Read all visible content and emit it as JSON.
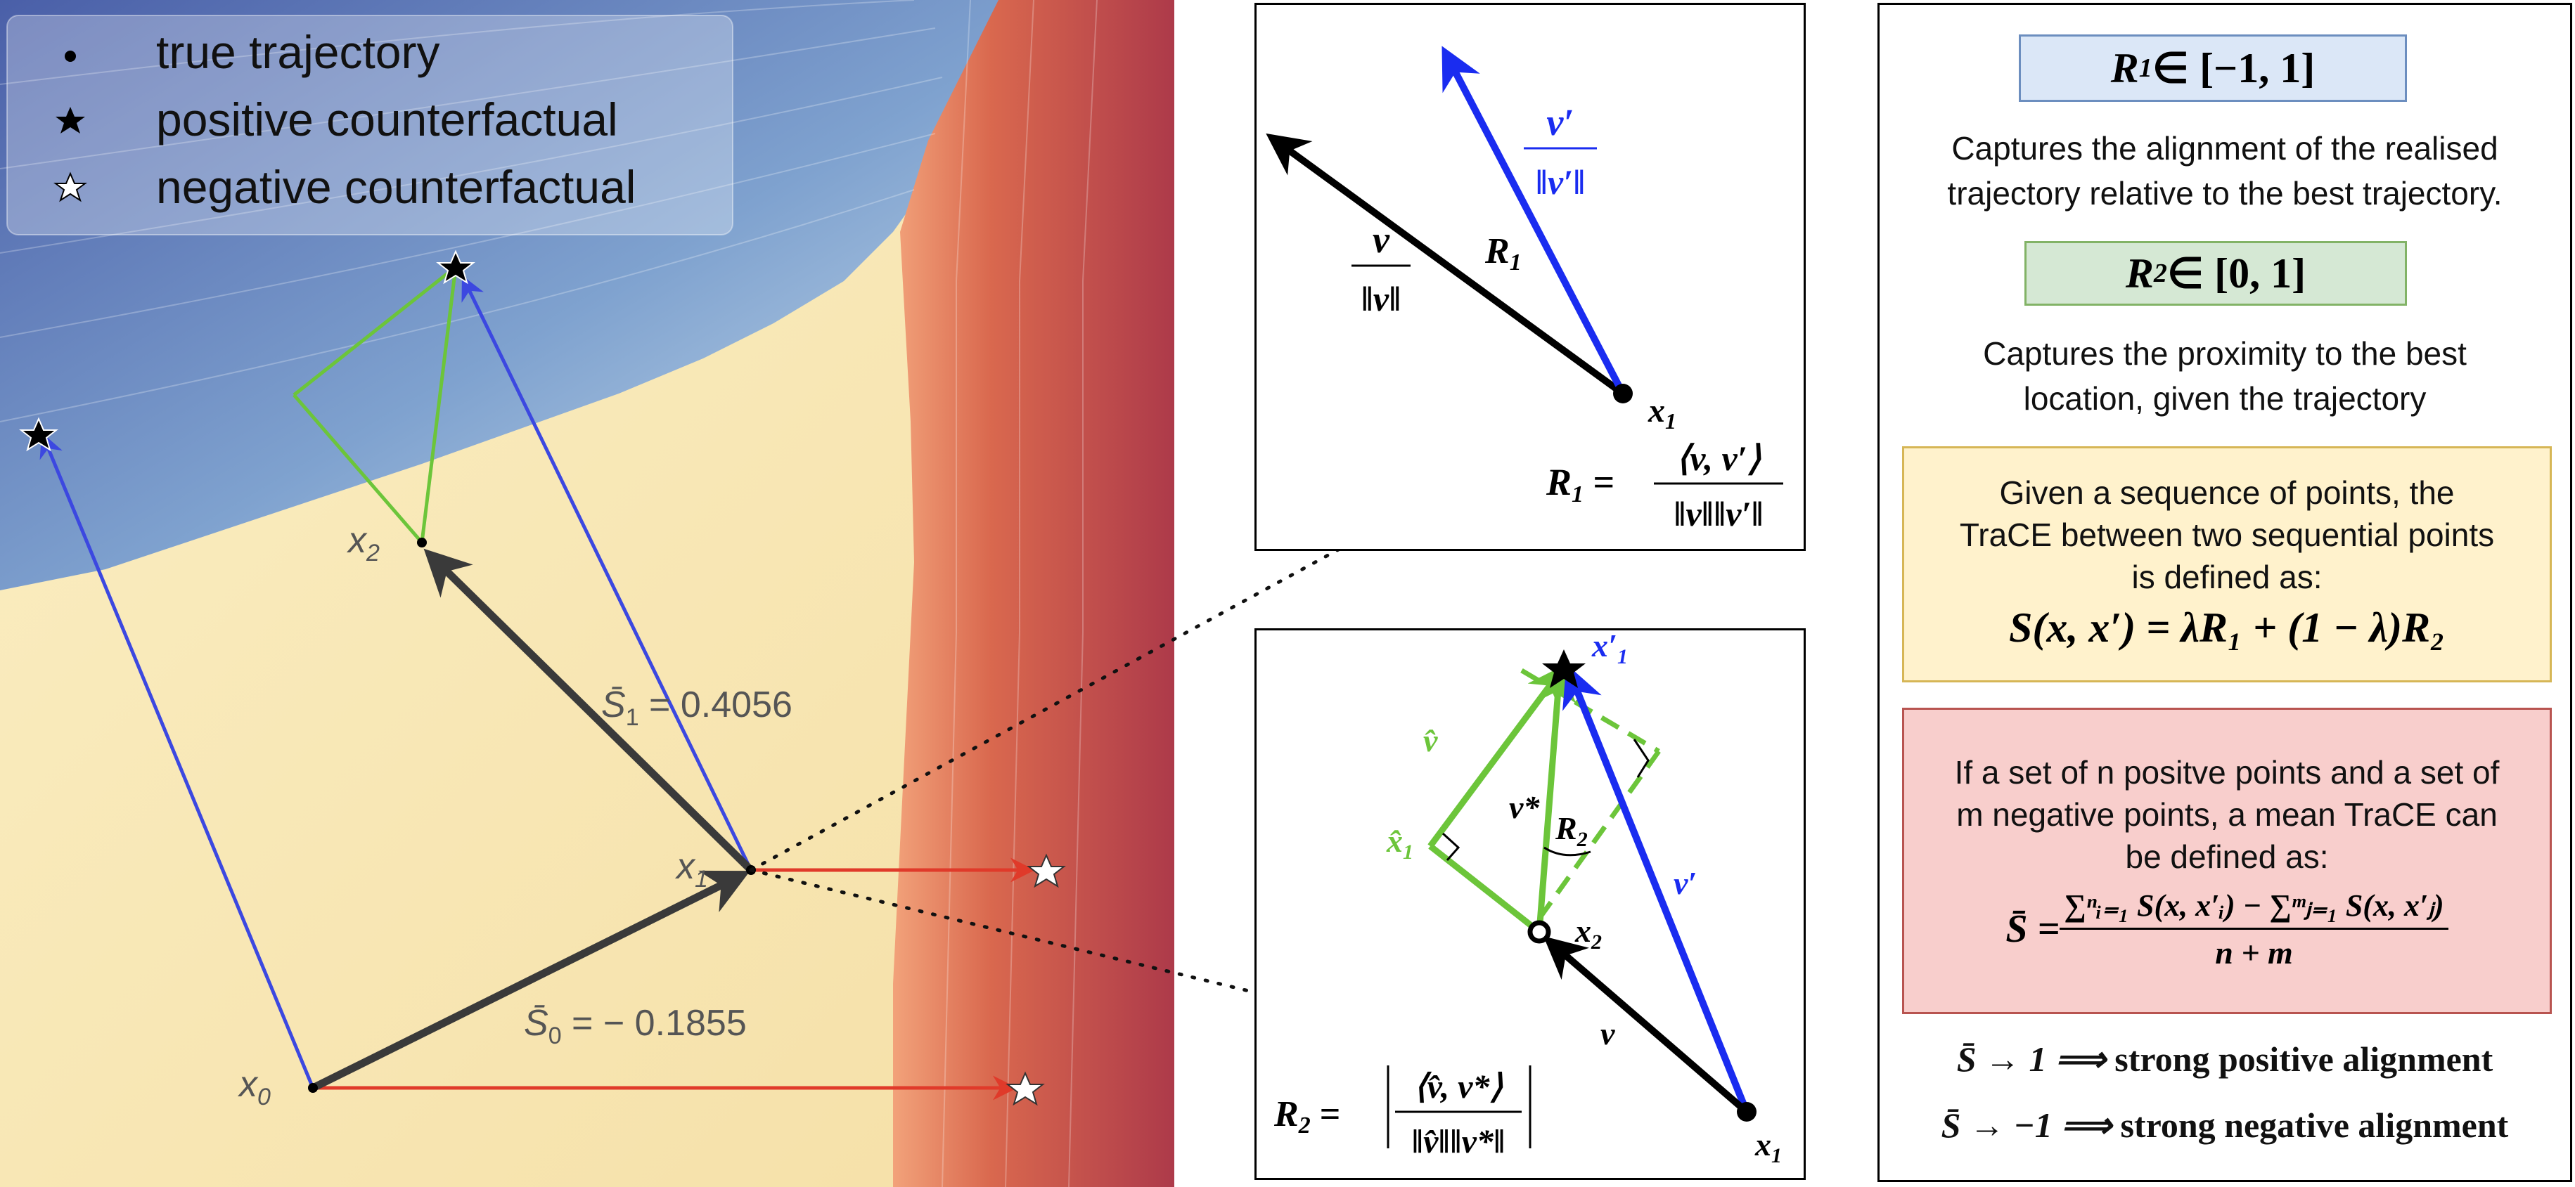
{
  "legend": {
    "items": [
      {
        "label": "true trajectory",
        "marker": "dot-icon"
      },
      {
        "label": "positive counterfactual",
        "marker": "star-filled-icon"
      },
      {
        "label": "negative counterfactual",
        "marker": "star-hollow-icon"
      }
    ]
  },
  "main_plot": {
    "points": {
      "x0": "x",
      "x0_sub": "0",
      "x1": "x",
      "x1_sub": "1",
      "x2": "x",
      "x2_sub": "2"
    },
    "scores": {
      "s1_sym": "S̄",
      "s1_sub": "1",
      "s1_val": " = 0.4056",
      "s0_sym": "S̄",
      "s0_sub": "0",
      "s0_val": " = − 0.1855"
    },
    "colors": {
      "true": "#2b2b2b",
      "positive": "#3c48e0",
      "negative": "#e03a2a",
      "projection": "#6cc53a"
    }
  },
  "inset_r1": {
    "vec_v_num": "v",
    "vec_v_den": "‖v‖",
    "vec_vp_num": "v′",
    "vec_vp_den": "‖v′‖",
    "angle_label": "R",
    "angle_sub": "1",
    "point_label": "x",
    "point_sub": "1",
    "formula_lhs": "R",
    "formula_lhs_sub": "1",
    "formula_eq": " = ",
    "formula_num": "⟨v, v′⟩",
    "formula_den": "‖v‖‖v′‖"
  },
  "inset_r2": {
    "label_vhat": "v̂",
    "label_xhat": "x̂",
    "label_xhat_sub": "1",
    "label_vstar": "v*",
    "label_r2": "R",
    "label_r2_sub": "2",
    "label_vprime": "v′",
    "label_v": "v",
    "label_x1p": "x′",
    "label_x1p_sub": "1",
    "label_x2": "x",
    "label_x2_sub": "2",
    "label_x1": "x",
    "label_x1_sub": "1",
    "formula_lhs": "R",
    "formula_lhs_sub": "2",
    "formula_eq": " = ",
    "formula_num": "⟨v̂, v*⟩",
    "formula_den": "‖v̂‖‖v*‖"
  },
  "info": {
    "r1_title": "R",
    "r1_sub": "1",
    "r1_range": " ∈ [−1, 1]",
    "r1_desc_1": "Captures the alignment of the realised",
    "r1_desc_2": "trajectory relative to the best trajectory.",
    "r2_title": "R",
    "r2_sub": "2",
    "r2_range": " ∈ [0, 1]",
    "r2_desc_1": "Captures the proximity to the best",
    "r2_desc_2": "location, given the trajectory",
    "trace_text_1": "Given a sequence of points, the",
    "trace_text_2": "TraCE between two sequential points",
    "trace_text_3": "is defined as:",
    "trace_formula": "S(x, x′) = λR₁ + (1 − λ)R₂",
    "mean_text_1": "If a set of n positve points and a set of",
    "mean_text_2": "m negative points, a mean TraCE can",
    "mean_text_3": "be defined as:",
    "mean_lhs": "S̄ = ",
    "mean_num": "∑ⁿᵢ₌₁ S(x, x′ᵢ) − ∑ᵐⱼ₌₁ S(x, x′ⱼ)",
    "mean_den": "n + m",
    "pos_lhs": "S̄ → 1  ⟹ ",
    "pos_text": "strong positive alignment",
    "neg_lhs": "S̄ → −1  ⟹ ",
    "neg_text": "strong negative alignment",
    "colors": {
      "blue_bg": "#dbe7f7",
      "blue_border": "#6c8ebf",
      "green_bg": "#d5e8d4",
      "green_border": "#82b366",
      "yellow_bg": "#fff2cc",
      "yellow_border": "#d6b656",
      "red_bg": "#f8cecc",
      "red_border": "#b85450"
    }
  }
}
